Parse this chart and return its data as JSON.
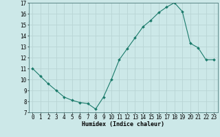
{
  "x": [
    0,
    1,
    2,
    3,
    4,
    5,
    6,
    7,
    8,
    9,
    10,
    11,
    12,
    13,
    14,
    15,
    16,
    17,
    18,
    19,
    20,
    21,
    22,
    23
  ],
  "y": [
    11.0,
    10.3,
    9.6,
    9.0,
    8.4,
    8.1,
    7.9,
    7.8,
    7.3,
    8.4,
    10.0,
    11.8,
    12.8,
    13.8,
    14.8,
    15.4,
    16.1,
    16.6,
    17.0,
    16.2,
    13.3,
    12.9,
    11.8,
    11.8
  ],
  "line_color": "#1a7a6a",
  "marker": "D",
  "marker_size": 2.0,
  "bg_color": "#cce8e8",
  "grid_color": "#b8d4d4",
  "xlim": [
    -0.5,
    23.5
  ],
  "ylim": [
    7,
    17
  ],
  "yticks": [
    7,
    8,
    9,
    10,
    11,
    12,
    13,
    14,
    15,
    16,
    17
  ],
  "xticks": [
    0,
    1,
    2,
    3,
    4,
    5,
    6,
    7,
    8,
    9,
    10,
    11,
    12,
    13,
    14,
    15,
    16,
    17,
    18,
    19,
    20,
    21,
    22,
    23
  ],
  "xlabel": "Humidex (Indice chaleur)",
  "xlabel_fontsize": 6.0,
  "tick_fontsize": 5.5,
  "linewidth": 0.8
}
